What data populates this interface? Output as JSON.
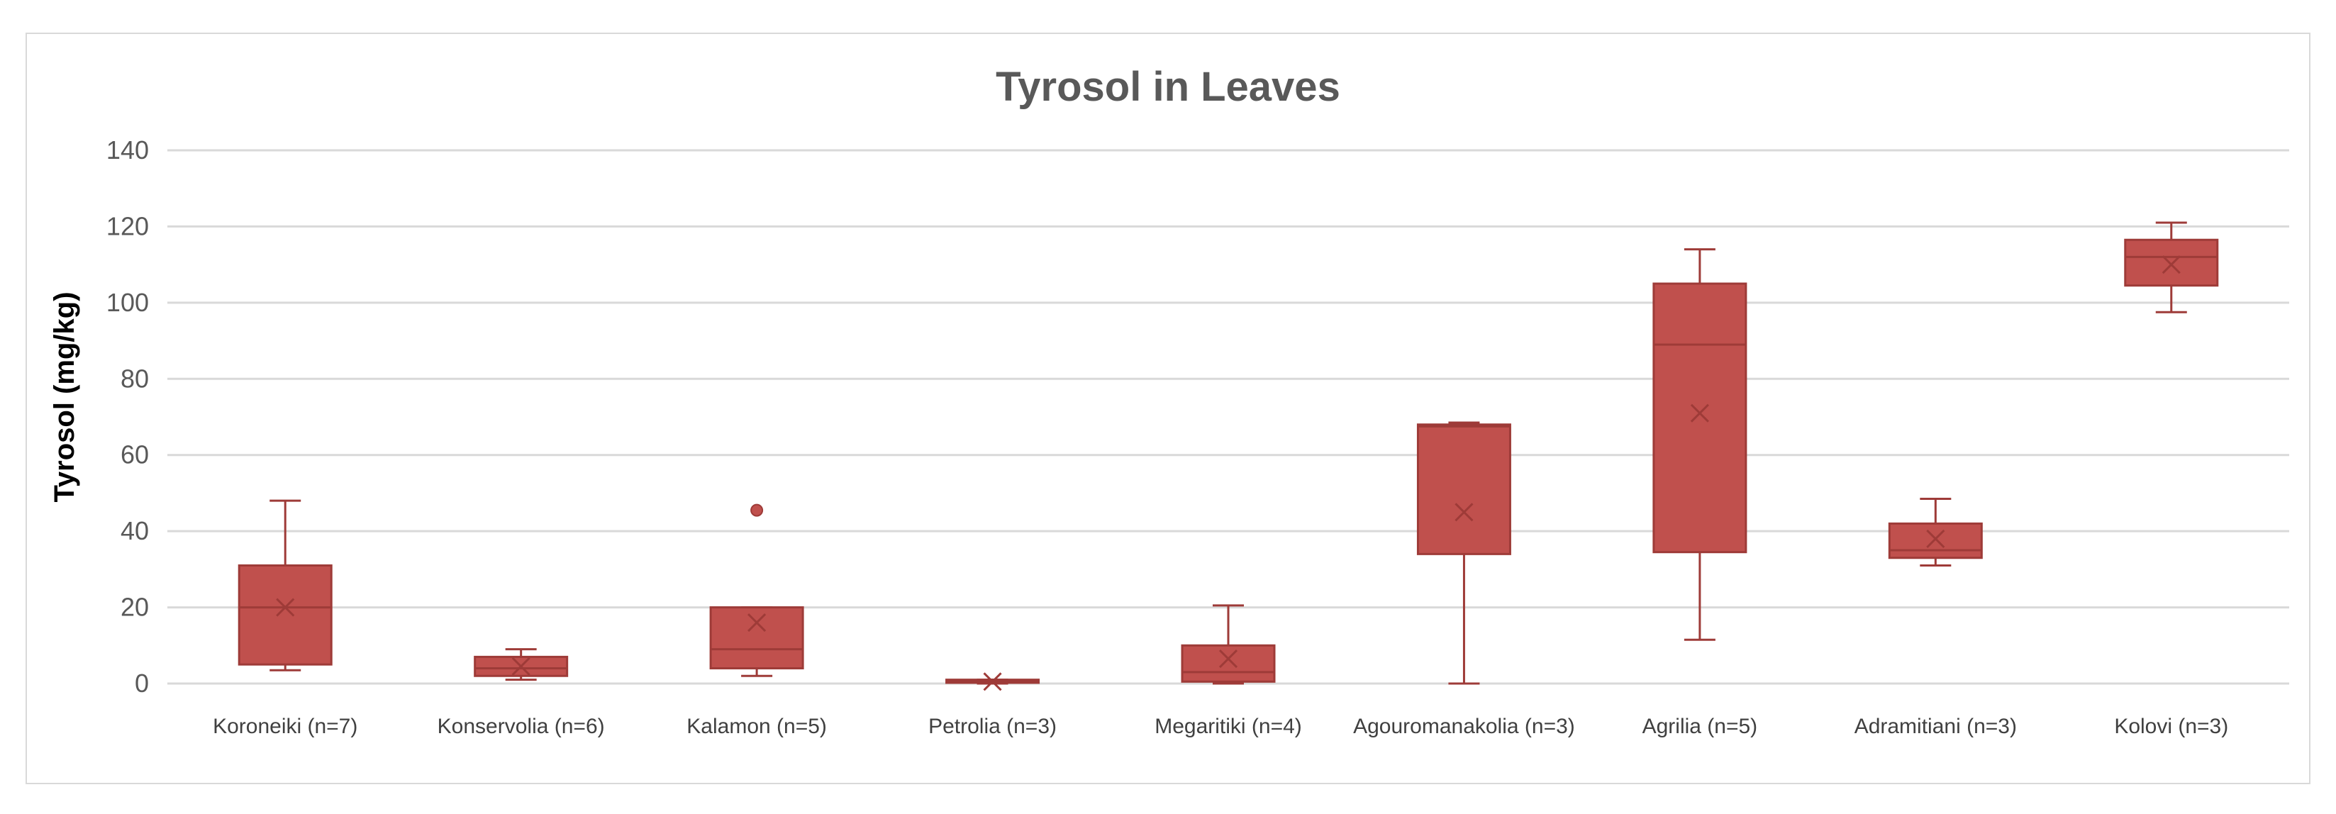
{
  "chart_data": {
    "type": "box",
    "title": "Tyrosol in Leaves",
    "xlabel": "",
    "ylabel": "Tyrosol (mg/kg)",
    "ylim": [
      0,
      140
    ],
    "yticks": [
      0,
      20,
      40,
      60,
      80,
      100,
      120,
      140
    ],
    "grid": true,
    "legend": "none",
    "colors": {
      "box_fill": "#c0504d",
      "box_stroke": "#9e3b38",
      "grid": "#d9d9d9",
      "axis": "#d9d9d9"
    },
    "categories": [
      "Koroneiki (n=7)",
      "Konservolia (n=6)",
      "Kalamon (n=5)",
      "Petrolia (n=3)",
      "Megaritiki (n=4)",
      "Agouromanakolia (n=3)",
      "Agrilia (n=5)",
      "Adramitiani (n=3)",
      "Kolovi (n=3)"
    ],
    "boxes": [
      {
        "min": 3.5,
        "q1": 5,
        "median": 20,
        "q3": 31,
        "max": 48,
        "mean": 20,
        "outliers": []
      },
      {
        "min": 1,
        "q1": 2,
        "median": 4,
        "q3": 7,
        "max": 9,
        "mean": 4.5,
        "outliers": []
      },
      {
        "min": 2,
        "q1": 4,
        "median": 9,
        "q3": 20,
        "max": 20,
        "mean": 16,
        "outliers": [
          45.5
        ]
      },
      {
        "min": 0,
        "q1": 0.2,
        "median": 0.5,
        "q3": 1,
        "max": 1,
        "mean": 0.5,
        "outliers": []
      },
      {
        "min": 0,
        "q1": 0.5,
        "median": 3,
        "q3": 10,
        "max": 20.5,
        "mean": 6.5,
        "outliers": []
      },
      {
        "min": 0,
        "q1": 34,
        "median": 67.5,
        "q3": 68,
        "max": 68.5,
        "mean": 45,
        "outliers": []
      },
      {
        "min": 11.5,
        "q1": 34.5,
        "median": 89,
        "q3": 105,
        "max": 114,
        "mean": 71,
        "outliers": []
      },
      {
        "min": 31,
        "q1": 33,
        "median": 35,
        "q3": 42,
        "max": 48.5,
        "mean": 38,
        "outliers": []
      },
      {
        "min": 97.5,
        "q1": 104.5,
        "median": 112,
        "q3": 116.5,
        "max": 121,
        "mean": 110,
        "outliers": []
      }
    ]
  }
}
